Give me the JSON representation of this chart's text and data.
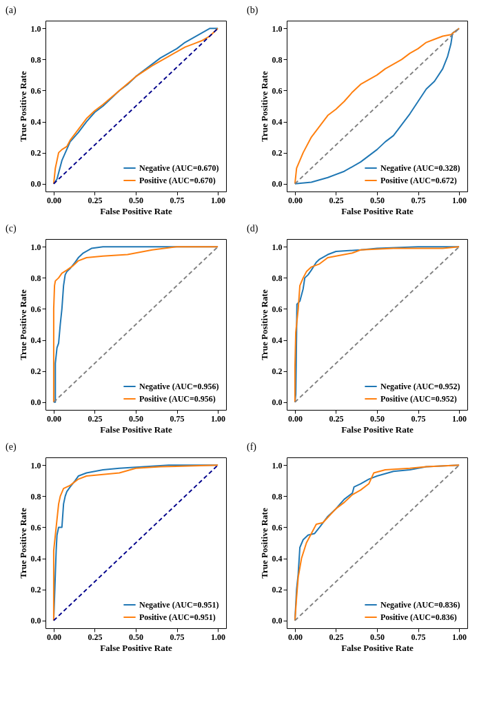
{
  "chart_data": [
    {
      "type": "line",
      "title": "(a)",
      "xlabel": "False Positive Rate",
      "ylabel": "True Positive Rate",
      "xlim": [
        -0.05,
        1.05
      ],
      "ylim": [
        -0.05,
        1.05
      ],
      "xticks": [
        {
          "value": 0,
          "label": "0.00"
        },
        {
          "value": 0.25,
          "label": "0.25"
        },
        {
          "value": 0.5,
          "label": "0.50"
        },
        {
          "value": 0.75,
          "label": "0.75"
        },
        {
          "value": 1,
          "label": "1.00"
        }
      ],
      "yticks": [
        {
          "value": 0,
          "label": "0.0"
        },
        {
          "value": 0.2,
          "label": "0.2"
        },
        {
          "value": 0.4,
          "label": "0.4"
        },
        {
          "value": 0.6,
          "label": "0.6"
        },
        {
          "value": 0.8,
          "label": "0.8"
        },
        {
          "value": 1,
          "label": "1.0"
        }
      ],
      "legend": "bottom right",
      "grid": false,
      "series": [
        {
          "name": "Negative (AUC=0.670)",
          "color": "#1f77b4",
          "x": [
            0,
            0.02,
            0.05,
            0.1,
            0.15,
            0.2,
            0.25,
            0.3,
            0.35,
            0.4,
            0.45,
            0.5,
            0.55,
            0.6,
            0.65,
            0.7,
            0.75,
            0.8,
            0.85,
            0.9,
            0.95,
            1
          ],
          "values": [
            0,
            0.03,
            0.15,
            0.27,
            0.33,
            0.4,
            0.46,
            0.5,
            0.55,
            0.6,
            0.64,
            0.69,
            0.73,
            0.77,
            0.81,
            0.84,
            0.87,
            0.91,
            0.94,
            0.97,
            1,
            1
          ]
        },
        {
          "name": "Positive (AUC=0.670)",
          "color": "#ff7f0e",
          "x": [
            0,
            0.01,
            0.03,
            0.05,
            0.08,
            0.1,
            0.15,
            0.2,
            0.25,
            0.3,
            0.4,
            0.5,
            0.6,
            0.7,
            0.75,
            0.8,
            0.85,
            0.9,
            0.95,
            1
          ],
          "values": [
            0,
            0.1,
            0.2,
            0.22,
            0.24,
            0.28,
            0.35,
            0.42,
            0.47,
            0.51,
            0.6,
            0.69,
            0.76,
            0.82,
            0.85,
            0.88,
            0.9,
            0.92,
            0.95,
            1
          ]
        },
        {
          "color": "#00008b",
          "line_style": "dashed",
          "x": [
            0,
            1
          ],
          "values": [
            0,
            1
          ]
        }
      ]
    },
    {
      "type": "line",
      "title": "(b)",
      "xlabel": "False Positive Rate",
      "ylabel": "True Positive Rate",
      "xlim": [
        -0.05,
        1.05
      ],
      "ylim": [
        -0.05,
        1.05
      ],
      "xticks": [
        {
          "value": 0,
          "label": "0.00"
        },
        {
          "value": 0.25,
          "label": "0.25"
        },
        {
          "value": 0.5,
          "label": "0.50"
        },
        {
          "value": 0.75,
          "label": "0.75"
        },
        {
          "value": 1,
          "label": "1.00"
        }
      ],
      "yticks": [
        {
          "value": 0,
          "label": "0.0"
        },
        {
          "value": 0.2,
          "label": "0.2"
        },
        {
          "value": 0.4,
          "label": "0.4"
        },
        {
          "value": 0.6,
          "label": "0.6"
        },
        {
          "value": 0.8,
          "label": "0.8"
        },
        {
          "value": 1,
          "label": "1.0"
        }
      ],
      "legend": "bottom right",
      "grid": false,
      "series": [
        {
          "name": "Negative (AUC=0.328)",
          "color": "#1f77b4",
          "x": [
            0,
            0.1,
            0.2,
            0.3,
            0.4,
            0.5,
            0.55,
            0.6,
            0.65,
            0.7,
            0.75,
            0.8,
            0.85,
            0.9,
            0.93,
            0.95,
            0.96,
            1
          ],
          "values": [
            0,
            0.01,
            0.04,
            0.08,
            0.14,
            0.22,
            0.27,
            0.31,
            0.38,
            0.45,
            0.53,
            0.61,
            0.66,
            0.74,
            0.82,
            0.9,
            0.97,
            1
          ]
        },
        {
          "name": "Positive (AUC=0.672)",
          "color": "#ff7f0e",
          "x": [
            0,
            0.01,
            0.03,
            0.05,
            0.1,
            0.15,
            0.2,
            0.25,
            0.3,
            0.35,
            0.4,
            0.45,
            0.5,
            0.55,
            0.6,
            0.65,
            0.7,
            0.75,
            0.8,
            0.85,
            0.9,
            0.95,
            1
          ],
          "values": [
            0,
            0.1,
            0.15,
            0.2,
            0.3,
            0.37,
            0.44,
            0.48,
            0.53,
            0.59,
            0.64,
            0.67,
            0.7,
            0.74,
            0.77,
            0.8,
            0.84,
            0.87,
            0.91,
            0.93,
            0.95,
            0.96,
            1
          ]
        },
        {
          "color": "#808080",
          "line_style": "dashed",
          "x": [
            0,
            1
          ],
          "values": [
            0,
            1
          ]
        }
      ]
    },
    {
      "type": "line",
      "title": "(c)",
      "xlabel": "False Positive Rate",
      "ylabel": "True Positive Rate",
      "xlim": [
        -0.05,
        1.05
      ],
      "ylim": [
        -0.05,
        1.05
      ],
      "xticks": [
        {
          "value": 0,
          "label": "0.00"
        },
        {
          "value": 0.25,
          "label": "0.25"
        },
        {
          "value": 0.5,
          "label": "0.50"
        },
        {
          "value": 0.75,
          "label": "0.75"
        },
        {
          "value": 1,
          "label": "1.00"
        }
      ],
      "yticks": [
        {
          "value": 0,
          "label": "0.0"
        },
        {
          "value": 0.2,
          "label": "0.2"
        },
        {
          "value": 0.4,
          "label": "0.4"
        },
        {
          "value": 0.6,
          "label": "0.6"
        },
        {
          "value": 0.8,
          "label": "0.8"
        },
        {
          "value": 1,
          "label": "1.0"
        }
      ],
      "legend": "bottom right",
      "grid": false,
      "series": [
        {
          "name": "Negative (AUC=0.956)",
          "color": "#1f77b4",
          "x": [
            0,
            0.01,
            0.01,
            0.02,
            0.03,
            0.04,
            0.05,
            0.06,
            0.07,
            0.08,
            0.1,
            0.13,
            0.15,
            0.18,
            0.23,
            0.3,
            1
          ],
          "values": [
            0,
            0,
            0.25,
            0.35,
            0.38,
            0.5,
            0.6,
            0.75,
            0.82,
            0.84,
            0.86,
            0.9,
            0.93,
            0.96,
            0.99,
            1,
            1
          ]
        },
        {
          "name": "Positive (AUC=0.956)",
          "color": "#ff7f0e",
          "x": [
            0,
            0,
            0.005,
            0.01,
            0.03,
            0.05,
            0.08,
            0.12,
            0.15,
            0.2,
            0.3,
            0.45,
            0.5,
            0.6,
            0.75,
            1
          ],
          "values": [
            0,
            0.6,
            0.75,
            0.78,
            0.8,
            0.83,
            0.85,
            0.88,
            0.91,
            0.93,
            0.94,
            0.95,
            0.96,
            0.98,
            1,
            1
          ]
        },
        {
          "color": "#808080",
          "line_style": "dashed",
          "x": [
            0,
            1
          ],
          "values": [
            0,
            1
          ]
        }
      ]
    },
    {
      "type": "line",
      "title": "(d)",
      "xlabel": "False Positive Rate",
      "ylabel": "True Positive Rate",
      "xlim": [
        -0.05,
        1.05
      ],
      "ylim": [
        -0.05,
        1.05
      ],
      "xticks": [
        {
          "value": 0,
          "label": "0.00"
        },
        {
          "value": 0.25,
          "label": "0.25"
        },
        {
          "value": 0.5,
          "label": "0.50"
        },
        {
          "value": 0.75,
          "label": "0.75"
        },
        {
          "value": 1,
          "label": "1.00"
        }
      ],
      "yticks": [
        {
          "value": 0,
          "label": "0.0"
        },
        {
          "value": 0.2,
          "label": "0.2"
        },
        {
          "value": 0.4,
          "label": "0.4"
        },
        {
          "value": 0.6,
          "label": "0.6"
        },
        {
          "value": 0.8,
          "label": "0.8"
        },
        {
          "value": 1,
          "label": "1.0"
        }
      ],
      "legend": "bottom right",
      "grid": false,
      "series": [
        {
          "name": "Negative (AUC=0.952)",
          "color": "#1f77b4",
          "x": [
            0,
            0.005,
            0.01,
            0.012,
            0.03,
            0.05,
            0.06,
            0.08,
            0.1,
            0.13,
            0.15,
            0.2,
            0.25,
            0.4,
            0.5,
            0.75,
            1
          ],
          "values": [
            0,
            0.05,
            0.45,
            0.63,
            0.65,
            0.73,
            0.8,
            0.82,
            0.85,
            0.9,
            0.92,
            0.95,
            0.97,
            0.98,
            0.99,
            1,
            1
          ]
        },
        {
          "name": "Positive (AUC=0.952)",
          "color": "#ff7f0e",
          "x": [
            0,
            0,
            0.005,
            0.01,
            0.02,
            0.03,
            0.05,
            0.07,
            0.1,
            0.15,
            0.2,
            0.3,
            0.35,
            0.4,
            0.6,
            0.9,
            1
          ],
          "values": [
            0,
            0.22,
            0.45,
            0.5,
            0.6,
            0.75,
            0.8,
            0.84,
            0.87,
            0.89,
            0.93,
            0.95,
            0.96,
            0.98,
            0.99,
            0.99,
            1
          ]
        },
        {
          "color": "#808080",
          "line_style": "dashed",
          "x": [
            0,
            1
          ],
          "values": [
            0,
            1
          ]
        }
      ]
    },
    {
      "type": "line",
      "title": "(e)",
      "xlabel": "False Positive Rate",
      "ylabel": "True Positive Rate",
      "xlim": [
        -0.05,
        1.05
      ],
      "ylim": [
        -0.05,
        1.05
      ],
      "xticks": [
        {
          "value": 0,
          "label": "0.00"
        },
        {
          "value": 0.25,
          "label": "0.25"
        },
        {
          "value": 0.5,
          "label": "0.50"
        },
        {
          "value": 0.75,
          "label": "0.75"
        },
        {
          "value": 1,
          "label": "1.00"
        }
      ],
      "yticks": [
        {
          "value": 0,
          "label": "0.0"
        },
        {
          "value": 0.2,
          "label": "0.2"
        },
        {
          "value": 0.4,
          "label": "0.4"
        },
        {
          "value": 0.6,
          "label": "0.6"
        },
        {
          "value": 0.8,
          "label": "0.8"
        },
        {
          "value": 1,
          "label": "1.0"
        }
      ],
      "legend": "bottom right",
      "grid": false,
      "series": [
        {
          "name": "Negative (AUC=0.951)",
          "color": "#1f77b4",
          "x": [
            0,
            0.01,
            0.015,
            0.02,
            0.03,
            0.05,
            0.06,
            0.07,
            0.08,
            0.1,
            0.13,
            0.15,
            0.2,
            0.3,
            0.4,
            0.55,
            0.7,
            1
          ],
          "values": [
            0,
            0.3,
            0.45,
            0.55,
            0.6,
            0.6,
            0.75,
            0.8,
            0.83,
            0.86,
            0.9,
            0.93,
            0.95,
            0.97,
            0.98,
            0.99,
            1,
            1
          ]
        },
        {
          "name": "Positive (AUC=0.951)",
          "color": "#ff7f0e",
          "x": [
            0,
            0,
            0.01,
            0.02,
            0.03,
            0.04,
            0.06,
            0.1,
            0.15,
            0.2,
            0.3,
            0.4,
            0.5,
            0.65,
            1
          ],
          "values": [
            0,
            0.45,
            0.55,
            0.65,
            0.75,
            0.8,
            0.85,
            0.87,
            0.91,
            0.93,
            0.94,
            0.95,
            0.98,
            0.99,
            1
          ]
        },
        {
          "color": "#00008b",
          "line_style": "dashed",
          "x": [
            0,
            1
          ],
          "values": [
            0,
            1
          ]
        }
      ]
    },
    {
      "type": "line",
      "title": "(f)",
      "xlabel": "False Positive Rate",
      "ylabel": "True Positive Rate",
      "xlim": [
        -0.05,
        1.05
      ],
      "ylim": [
        -0.05,
        1.05
      ],
      "xticks": [
        {
          "value": 0,
          "label": "0.00"
        },
        {
          "value": 0.25,
          "label": "0.25"
        },
        {
          "value": 0.5,
          "label": "0.50"
        },
        {
          "value": 0.75,
          "label": "0.75"
        },
        {
          "value": 1,
          "label": "1.00"
        }
      ],
      "yticks": [
        {
          "value": 0,
          "label": "0.0"
        },
        {
          "value": 0.2,
          "label": "0.2"
        },
        {
          "value": 0.4,
          "label": "0.4"
        },
        {
          "value": 0.6,
          "label": "0.6"
        },
        {
          "value": 0.8,
          "label": "0.8"
        },
        {
          "value": 1,
          "label": "1.0"
        }
      ],
      "legend": "bottom right",
      "grid": false,
      "series": [
        {
          "name": "Negative (AUC=0.836)",
          "color": "#1f77b4",
          "x": [
            0,
            0.01,
            0.02,
            0.03,
            0.05,
            0.08,
            0.12,
            0.15,
            0.2,
            0.25,
            0.3,
            0.35,
            0.36,
            0.4,
            0.45,
            0.5,
            0.6,
            0.7,
            0.8,
            1
          ],
          "values": [
            0,
            0.2,
            0.3,
            0.47,
            0.52,
            0.55,
            0.56,
            0.6,
            0.67,
            0.72,
            0.78,
            0.82,
            0.86,
            0.88,
            0.91,
            0.93,
            0.96,
            0.97,
            0.99,
            1
          ]
        },
        {
          "name": "Positive (AUC=0.836)",
          "color": "#ff7f0e",
          "x": [
            0,
            0.01,
            0.02,
            0.04,
            0.07,
            0.1,
            0.13,
            0.17,
            0.25,
            0.3,
            0.35,
            0.4,
            0.45,
            0.48,
            0.55,
            0.7,
            0.8,
            1
          ],
          "values": [
            0,
            0.15,
            0.28,
            0.4,
            0.5,
            0.56,
            0.62,
            0.63,
            0.72,
            0.76,
            0.81,
            0.84,
            0.88,
            0.95,
            0.97,
            0.98,
            0.99,
            1
          ]
        },
        {
          "color": "#808080",
          "line_style": "dashed",
          "x": [
            0,
            1
          ],
          "values": [
            0,
            1
          ]
        }
      ]
    }
  ]
}
